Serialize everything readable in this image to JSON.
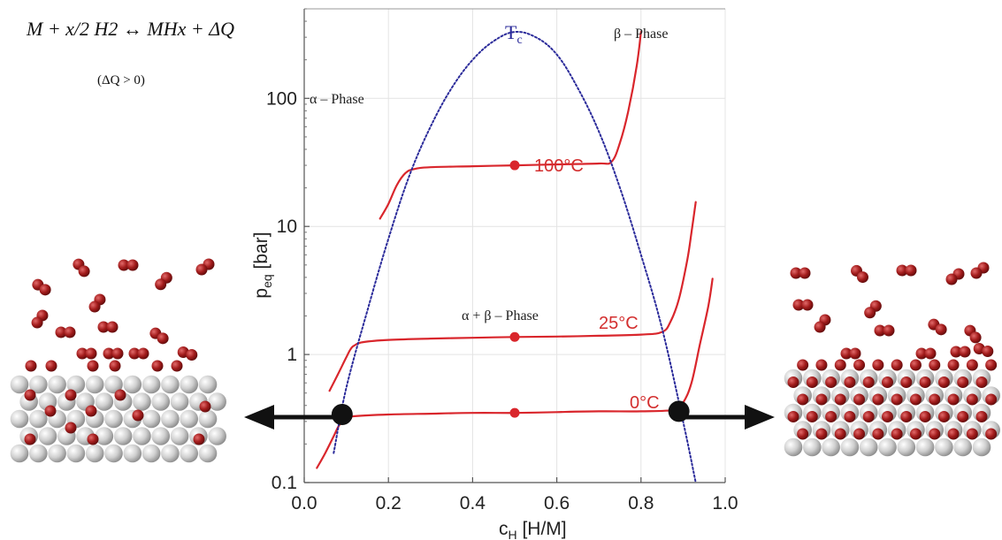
{
  "equation": {
    "main": "M + x/2 H2 ↔ MHx + ΔQ",
    "condition": "(ΔQ > 0)"
  },
  "colors": {
    "isotherm": "#d9262c",
    "tc_curve": "#2b2b9a",
    "atom_h": "#a31c1c",
    "atom_metal": "#c8c8c8",
    "arrow": "#111111"
  },
  "chart_data": {
    "type": "line",
    "xlabel": "c_H [H/M]",
    "ylabel": "p_eq [bar]",
    "xlim": [
      0,
      1.0
    ],
    "ylim": [
      0.1,
      500
    ],
    "y_scale": "log",
    "x_ticks": [
      "0.0",
      "0.2",
      "0.4",
      "0.6",
      "0.8",
      "1.0"
    ],
    "x_tick_values": [
      0,
      0.2,
      0.4,
      0.6,
      0.8,
      1.0
    ],
    "y_ticks": [
      "0.1",
      "1",
      "10",
      "100"
    ],
    "y_tick_values": [
      0.1,
      1,
      10,
      100
    ],
    "grid": true,
    "annotations": {
      "alpha_phase": "α – Phase",
      "beta_phase": "β – Phase",
      "mixed_phase": "α + β – Phase",
      "tc": "T",
      "tc_sub": "c"
    },
    "series": [
      {
        "name": "100°C",
        "x": [
          0.18,
          0.2,
          0.22,
          0.24,
          0.26,
          0.3,
          0.4,
          0.5,
          0.6,
          0.7,
          0.73,
          0.75,
          0.77,
          0.79,
          0.8
        ],
        "y": [
          11.5,
          15,
          21,
          26,
          28,
          29,
          29.5,
          30,
          30.5,
          31,
          32,
          45,
          80,
          180,
          330
        ],
        "marker_x": 0.5,
        "marker_y": 30
      },
      {
        "name": "25°C",
        "x": [
          0.06,
          0.08,
          0.1,
          0.11,
          0.12,
          0.14,
          0.2,
          0.3,
          0.4,
          0.5,
          0.6,
          0.7,
          0.8,
          0.85,
          0.87,
          0.89,
          0.91,
          0.92,
          0.93
        ],
        "y": [
          0.52,
          0.7,
          0.95,
          1.1,
          1.18,
          1.25,
          1.3,
          1.33,
          1.35,
          1.37,
          1.38,
          1.4,
          1.43,
          1.5,
          1.8,
          2.7,
          5.5,
          9,
          15.5
        ],
        "marker_x": 0.5,
        "marker_y": 1.37
      },
      {
        "name": "0°C",
        "x": [
          0.03,
          0.05,
          0.07,
          0.08,
          0.09,
          0.1,
          0.12,
          0.2,
          0.3,
          0.4,
          0.5,
          0.6,
          0.7,
          0.8,
          0.88,
          0.9,
          0.92,
          0.94,
          0.96,
          0.97
        ],
        "y": [
          0.13,
          0.17,
          0.23,
          0.27,
          0.3,
          0.32,
          0.33,
          0.34,
          0.345,
          0.35,
          0.35,
          0.355,
          0.36,
          0.36,
          0.37,
          0.42,
          0.6,
          1.2,
          2.4,
          3.9
        ],
        "marker_x": 0.5,
        "marker_y": 0.35
      },
      {
        "name": "T_c boundary",
        "x": [
          0.07,
          0.1,
          0.15,
          0.2,
          0.25,
          0.3,
          0.35,
          0.4,
          0.45,
          0.5,
          0.55,
          0.6,
          0.65,
          0.7,
          0.75,
          0.8,
          0.85,
          0.9,
          0.93
        ],
        "y": [
          0.17,
          0.55,
          2.2,
          8,
          25,
          60,
          120,
          200,
          280,
          330,
          300,
          220,
          120,
          55,
          20,
          6,
          1.6,
          0.3,
          0.1
        ]
      }
    ],
    "endpoint_markers": [
      {
        "x": 0.09,
        "y": 0.34
      },
      {
        "x": 0.89,
        "y": 0.36
      }
    ]
  }
}
